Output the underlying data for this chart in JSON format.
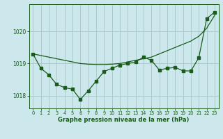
{
  "hours": [
    0,
    1,
    2,
    3,
    4,
    5,
    6,
    7,
    8,
    9,
    10,
    11,
    12,
    13,
    14,
    15,
    16,
    17,
    18,
    19,
    20,
    21,
    22,
    23
  ],
  "line1_values": [
    1019.3,
    1019.25,
    1019.2,
    1019.15,
    1019.1,
    1019.05,
    1019.0,
    1018.98,
    1018.97,
    1018.97,
    1018.98,
    1019.0,
    1019.05,
    1019.1,
    1019.15,
    1019.2,
    1019.3,
    1019.4,
    1019.5,
    1019.6,
    1019.7,
    1019.85,
    1020.1,
    1020.5
  ],
  "line2_values": [
    1019.3,
    1018.85,
    1018.65,
    1018.35,
    1018.25,
    1018.2,
    1017.88,
    1018.15,
    1018.45,
    1018.75,
    1018.85,
    1018.95,
    1019.0,
    1019.05,
    1019.2,
    1019.1,
    1018.8,
    1018.85,
    1018.88,
    1018.77,
    1018.77,
    1019.18,
    1020.4,
    1020.6
  ],
  "background_color": "#cce8ec",
  "grid_color": "#aacccc",
  "line_color": "#1a5c1a",
  "xlabel": "Graphe pression niveau de la mer (hPa)",
  "ylim": [
    1017.6,
    1020.85
  ],
  "yticks": [
    1018,
    1019,
    1020
  ],
  "xlim": [
    -0.5,
    23.5
  ]
}
